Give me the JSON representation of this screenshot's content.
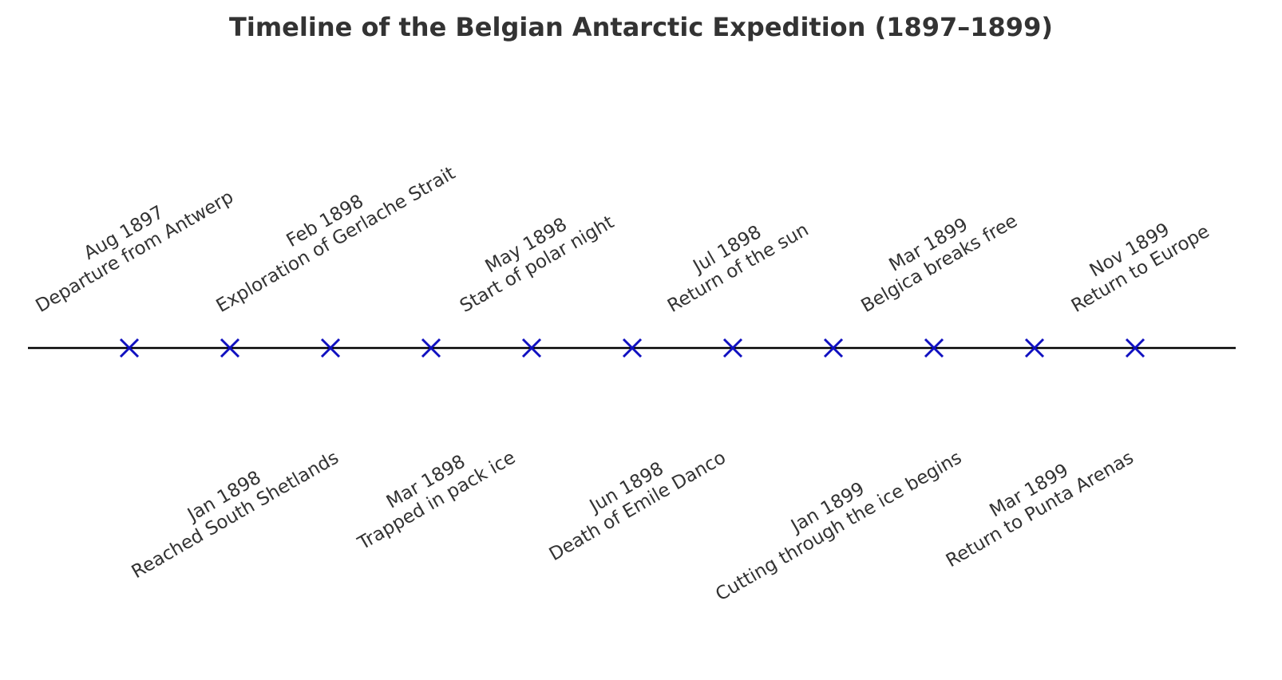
{
  "chart_data": {
    "type": "timeline",
    "title": "Timeline of the Belgian Antarctic Expedition (1897–1899)",
    "color": "#1010c0",
    "events": [
      {
        "date": "Aug 1897",
        "label": "Departure from Antwerp"
      },
      {
        "date": "Jan 1898",
        "label": "Reached South Shetlands"
      },
      {
        "date": "Feb 1898",
        "label": "Exploration of Gerlache Strait"
      },
      {
        "date": "Mar 1898",
        "label": "Trapped in pack ice"
      },
      {
        "date": "May 1898",
        "label": "Start of polar night"
      },
      {
        "date": "Jun 1898",
        "label": "Death of Emile Danco"
      },
      {
        "date": "Jul 1898",
        "label": "Return of the sun"
      },
      {
        "date": "Jan 1899",
        "label": "Cutting through the ice begins"
      },
      {
        "date": "Mar 1899",
        "label": "Belgica breaks free"
      },
      {
        "date": "Mar 1899",
        "label": "Return to Punta Arenas"
      },
      {
        "date": "Nov 1899",
        "label": "Return to Europe"
      }
    ]
  }
}
